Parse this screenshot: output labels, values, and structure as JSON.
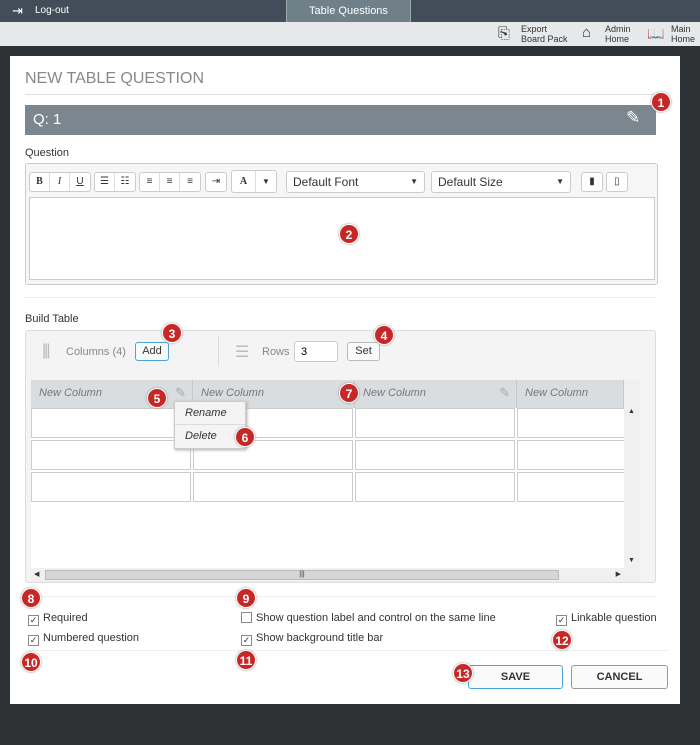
{
  "topbar": {
    "logout": "Log-out",
    "tab": "Table Questions"
  },
  "nav": {
    "export": [
      "Export",
      "Board Pack"
    ],
    "admin": [
      "Admin",
      "Home"
    ],
    "main": [
      "Main",
      "Home"
    ]
  },
  "modal": {
    "title": "NEW TABLE QUESTION",
    "qbar": "Q: 1",
    "question_label": "Question",
    "toolbar": {
      "bold": "B",
      "italic": "I",
      "underline": "U",
      "font_color": "A",
      "font": "Default Font",
      "size": "Default Size"
    },
    "build_label": "Build Table",
    "columns_label": "Columns (4)",
    "add": "Add",
    "rows_label": "Rows",
    "rows_value": "3",
    "set": "Set",
    "columns": [
      "New Column",
      "New Column",
      "New Column",
      "New Column"
    ],
    "context_menu": [
      "Rename",
      "Delete"
    ],
    "options": {
      "required": "Required",
      "numbered": "Numbered question",
      "same_line": "Show question label and control on the same line",
      "bg_title": "Show background title bar",
      "linkable": "Linkable question"
    },
    "checked": {
      "required": true,
      "numbered": true,
      "same_line": false,
      "bg_title": true,
      "linkable": true
    },
    "save": "SAVE",
    "cancel": "CANCEL"
  },
  "badges": [
    "1",
    "2",
    "3",
    "4",
    "5",
    "6",
    "7",
    "8",
    "9",
    "10",
    "11",
    "12",
    "13"
  ],
  "colors": {
    "topbar": "#414e5a",
    "tab": "#6f8088",
    "qbar": "#7b868e",
    "badge": "#c62828",
    "save_border": "#4aa3df"
  }
}
